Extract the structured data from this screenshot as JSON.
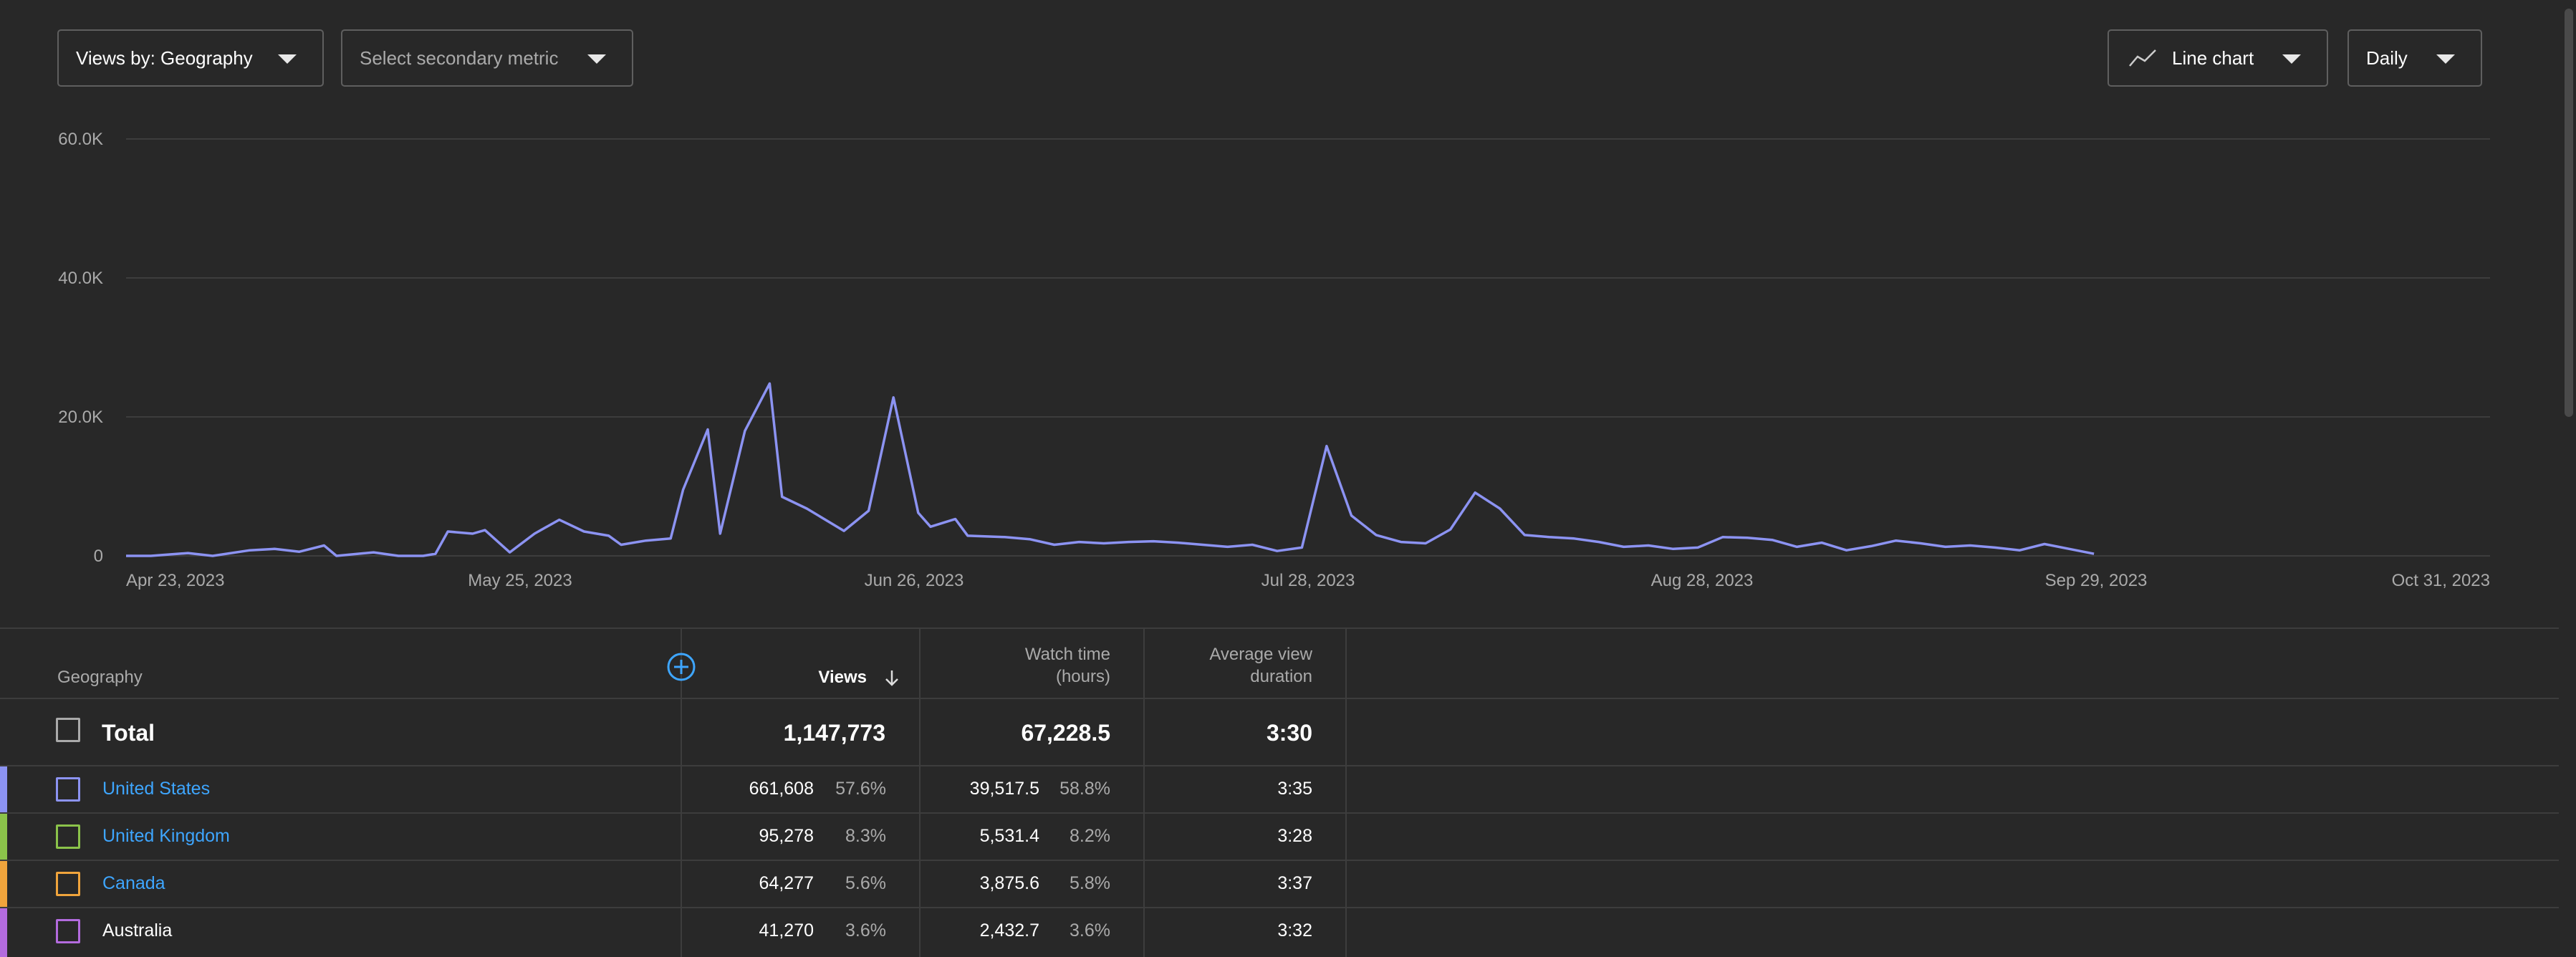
{
  "toolbar": {
    "views_by": "Views by: Geography",
    "secondary_metric": "Select secondary metric",
    "chart_type": "Line chart",
    "period": "Daily"
  },
  "chart_data": {
    "type": "line",
    "y_ticks": [
      "0",
      "20.0K",
      "40.0K",
      "60.0K"
    ],
    "ylim": [
      0,
      60000
    ],
    "x_ticks": [
      "Apr 23, 2023",
      "May 25, 2023",
      "Jun 26, 2023",
      "Jul 28, 2023",
      "Aug 28, 2023",
      "Sep 29, 2023",
      "Oct 31, 2023"
    ],
    "x_start": "2023-04-23",
    "x_end": "2023-10-31",
    "grid": true,
    "series": [
      {
        "color": "#8c93f2",
        "points": [
          [
            "2023-04-23",
            0
          ],
          [
            "2023-04-25",
            0
          ],
          [
            "2023-04-28",
            400
          ],
          [
            "2023-04-30",
            0
          ],
          [
            "2023-05-03",
            800
          ],
          [
            "2023-05-05",
            1000
          ],
          [
            "2023-05-07",
            600
          ],
          [
            "2023-05-09",
            1500
          ],
          [
            "2023-05-10",
            0
          ],
          [
            "2023-05-13",
            500
          ],
          [
            "2023-05-15",
            0
          ],
          [
            "2023-05-17",
            0
          ],
          [
            "2023-05-18",
            300
          ],
          [
            "2023-05-19",
            3500
          ],
          [
            "2023-05-21",
            3200
          ],
          [
            "2023-05-22",
            3700
          ],
          [
            "2023-05-24",
            500
          ],
          [
            "2023-05-26",
            3200
          ],
          [
            "2023-05-28",
            5200
          ],
          [
            "2023-05-30",
            3500
          ],
          [
            "2023-06-01",
            2900
          ],
          [
            "2023-06-02",
            1600
          ],
          [
            "2023-06-04",
            2200
          ],
          [
            "2023-06-06",
            2500
          ],
          [
            "2023-06-07",
            9500
          ],
          [
            "2023-06-09",
            18200
          ],
          [
            "2023-06-10",
            3200
          ],
          [
            "2023-06-12",
            18000
          ],
          [
            "2023-06-14",
            24800
          ],
          [
            "2023-06-15",
            8500
          ],
          [
            "2023-06-17",
            6800
          ],
          [
            "2023-06-20",
            3600
          ],
          [
            "2023-06-22",
            6500
          ],
          [
            "2023-06-24",
            22800
          ],
          [
            "2023-06-26",
            6200
          ],
          [
            "2023-06-27",
            4200
          ],
          [
            "2023-06-29",
            5300
          ],
          [
            "2023-06-30",
            2900
          ],
          [
            "2023-07-03",
            2700
          ],
          [
            "2023-07-05",
            2400
          ],
          [
            "2023-07-07",
            1600
          ],
          [
            "2023-07-09",
            2000
          ],
          [
            "2023-07-11",
            1800
          ],
          [
            "2023-07-13",
            2000
          ],
          [
            "2023-07-15",
            2100
          ],
          [
            "2023-07-17",
            1900
          ],
          [
            "2023-07-19",
            1600
          ],
          [
            "2023-07-21",
            1300
          ],
          [
            "2023-07-23",
            1600
          ],
          [
            "2023-07-25",
            700
          ],
          [
            "2023-07-27",
            1200
          ],
          [
            "2023-07-29",
            15800
          ],
          [
            "2023-07-31",
            5800
          ],
          [
            "2023-08-02",
            3000
          ],
          [
            "2023-08-04",
            2000
          ],
          [
            "2023-08-06",
            1800
          ],
          [
            "2023-08-08",
            3800
          ],
          [
            "2023-08-10",
            9100
          ],
          [
            "2023-08-12",
            6800
          ],
          [
            "2023-08-14",
            3000
          ],
          [
            "2023-08-16",
            2700
          ],
          [
            "2023-08-18",
            2500
          ],
          [
            "2023-08-20",
            2000
          ],
          [
            "2023-08-22",
            1300
          ],
          [
            "2023-08-24",
            1500
          ],
          [
            "2023-08-26",
            1000
          ],
          [
            "2023-08-28",
            1200
          ],
          [
            "2023-08-30",
            2700
          ],
          [
            "2023-09-01",
            2600
          ],
          [
            "2023-09-03",
            2300
          ],
          [
            "2023-09-05",
            1300
          ],
          [
            "2023-09-07",
            1900
          ],
          [
            "2023-09-09",
            800
          ],
          [
            "2023-09-11",
            1400
          ],
          [
            "2023-09-13",
            2200
          ],
          [
            "2023-09-15",
            1800
          ],
          [
            "2023-09-17",
            1300
          ],
          [
            "2023-09-19",
            1500
          ],
          [
            "2023-09-21",
            1200
          ],
          [
            "2023-09-23",
            800
          ],
          [
            "2023-09-25",
            1700
          ],
          [
            "2023-09-27",
            1000
          ],
          [
            "2023-09-29",
            300
          ]
        ]
      }
    ]
  },
  "table": {
    "headers": {
      "geography": "Geography",
      "views": "Views",
      "watch_time": [
        "Watch time",
        "(hours)"
      ],
      "avg_duration": [
        "Average view",
        "duration"
      ]
    },
    "total": {
      "label": "Total",
      "views": "1,147,773",
      "watch_time": "67,228.5",
      "avg_duration": "3:30"
    },
    "rows": [
      {
        "name": "United States",
        "views": "661,608",
        "views_pct": "57.6%",
        "watch_time": "39,517.5",
        "watch_pct": "58.8%",
        "avg_duration": "3:35",
        "color": "#8c93f2",
        "link": true
      },
      {
        "name": "United Kingdom",
        "views": "95,278",
        "views_pct": "8.3%",
        "watch_time": "5,531.4",
        "watch_pct": "8.2%",
        "avg_duration": "3:28",
        "color": "#8bc34a",
        "link": true
      },
      {
        "name": "Canada",
        "views": "64,277",
        "views_pct": "5.6%",
        "watch_time": "3,875.6",
        "watch_pct": "5.8%",
        "avg_duration": "3:37",
        "color": "#f0a43c",
        "link": true
      },
      {
        "name": "Australia",
        "views": "41,270",
        "views_pct": "3.6%",
        "watch_time": "2,432.7",
        "watch_pct": "3.6%",
        "avg_duration": "3:32",
        "color": "#b36bde",
        "link": false
      }
    ]
  }
}
